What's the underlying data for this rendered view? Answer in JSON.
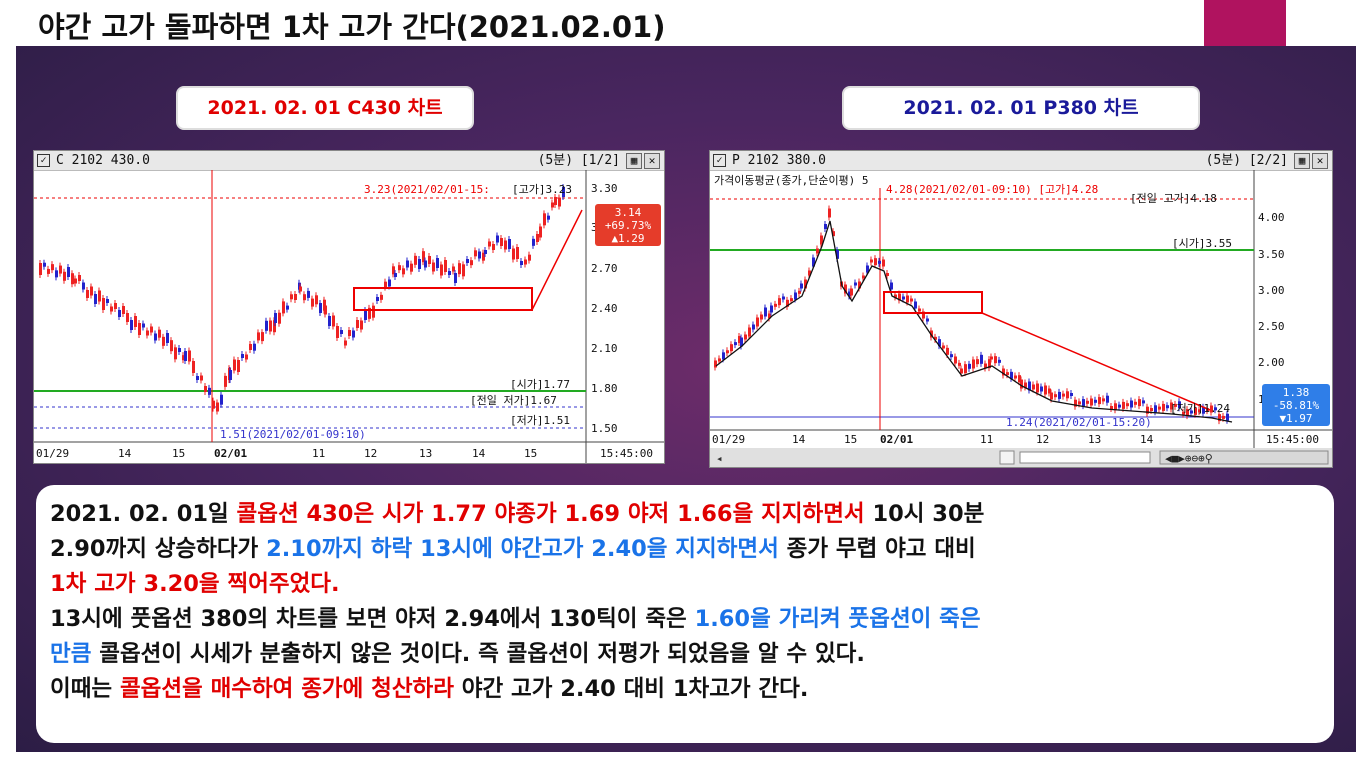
{
  "title": "야간 고가 돌파하면 1차 고가 간다(2021.02.01)",
  "labels": {
    "left": "2021. 02. 01  C430 차트",
    "right": "2021. 02. 01 P380 차트"
  },
  "left_chart": {
    "window_title": "C 2102 430.0",
    "period": "(5분) [1/2]",
    "top_annotation": "3.23(2021/02/01-15:",
    "high_label": "[고가]3.23",
    "price_tag": [
      "3.14",
      "+69.73%",
      "▲1.29"
    ],
    "y_ticks": [
      "3.30",
      "3.00",
      "2.70",
      "2.40",
      "2.10",
      "1.80",
      "1.50"
    ],
    "level_labels": [
      "[시가]1.77",
      "[전일 저가]1.67",
      "[저가]1.51"
    ],
    "low_annotation": "1.51(2021/02/01-09:10)",
    "x_ticks": [
      "01/29",
      "14",
      "15",
      "02/01",
      "11",
      "12",
      "13",
      "14",
      "15"
    ],
    "time_label": "15:45:00"
  },
  "right_chart": {
    "window_title": "P 2102 380.0",
    "period": "(5분) [2/2]",
    "indicator": "가격이동평균(종가,단순이평) 5",
    "top_annotation": "4.28(2021/02/01-09:10) [고가]4.28",
    "prev_high_label": "[전일 고가]4.18",
    "open_label": "[시가]3.55",
    "y_ticks": [
      "4.00",
      "3.50",
      "3.00",
      "2.50",
      "2.00",
      "1.50"
    ],
    "low_label": "[저가]1.24",
    "price_tag": [
      "1.38",
      "-58.81%",
      "▼1.97"
    ],
    "low_annotation": "1.24(2021/02/01-15:20)",
    "x_ticks": [
      "01/29",
      "14",
      "15",
      "02/01",
      "11",
      "12",
      "13",
      "14",
      "15"
    ],
    "time_label": "15:45:00"
  },
  "body_text": {
    "l1a": "2021. 02. 01일 ",
    "l1b": "콜옵션 430은 시가 1.77 야종가 1.69 야저 1.66을 지지하면서",
    "l1c": " 10시 30분",
    "l2a": "2.90까지 상승하다가 ",
    "l2b": "2.10까지 하락 13시에 야간고가 2.40을 지지하면서",
    "l2c": " 종가 무렵 야고 대비",
    "l3a": "1차 고가 3.20을 찍어주었다.",
    "l4a": "13시에 풋옵션 380의 차트를 보면 야저 2.94에서 130틱이 죽은 ",
    "l4b": "1.60을 가리켜 풋옵션이 죽은",
    "l5a": "만큼",
    "l5b": " 콜옵션이 시세가 분출하지 않은 것이다. 즉 콜옵션이 저평가 되었음을 알 수 있다.",
    "l6a": "이때는 ",
    "l6b": "콜옵션을 매수하여 종가에 청산하라",
    "l6c": " 야간 고가 2.40 대비 1차고가 간다."
  },
  "colors": {
    "accent_red": "#e00000",
    "accent_blue": "#1a73e8",
    "magenta": "#b0135f"
  }
}
